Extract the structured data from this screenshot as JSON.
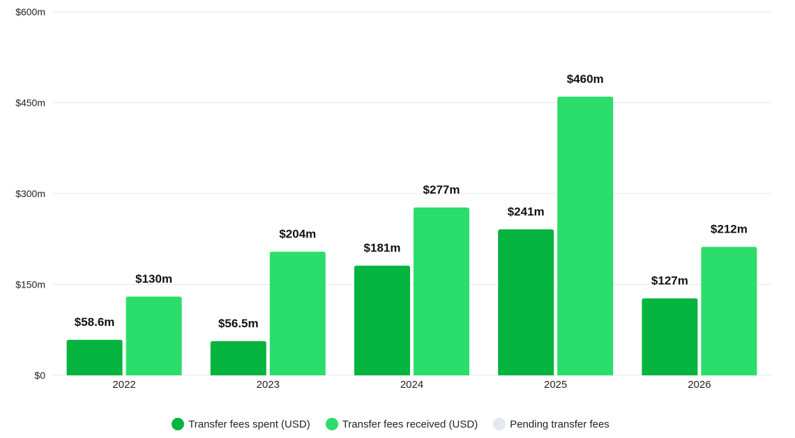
{
  "chart_data": {
    "type": "bar",
    "categories": [
      "2022",
      "2023",
      "2024",
      "2025",
      "2026"
    ],
    "series": [
      {
        "name": "Transfer fees spent (USD)",
        "color": "#04b43f",
        "values": [
          58.6,
          56.5,
          181,
          241,
          127
        ],
        "labels": [
          "$58.6m",
          "$56.5m",
          "$181m",
          "$241m",
          "$127m"
        ]
      },
      {
        "name": "Transfer fees received (USD)",
        "color": "#2bdd6a",
        "values": [
          130,
          204,
          277,
          460,
          212
        ],
        "labels": [
          "$130m",
          "$204m",
          "$277m",
          "$460m",
          "$212m"
        ]
      }
    ],
    "ylim": [
      0,
      600
    ],
    "yticks": [
      0,
      150,
      300,
      450,
      600
    ],
    "ytick_labels": [
      "$0",
      "$150m",
      "$300m",
      "$450m",
      "$600m"
    ],
    "grid": true,
    "legend": {
      "placement": "bottom-center",
      "entries": [
        {
          "label": "Transfer fees spent (USD)",
          "color": "#04b43f"
        },
        {
          "label": "Transfer fees received (USD)",
          "color": "#2bdd6a"
        },
        {
          "label": "Pending transfer fees",
          "color": "#e4e8f2"
        }
      ]
    }
  }
}
